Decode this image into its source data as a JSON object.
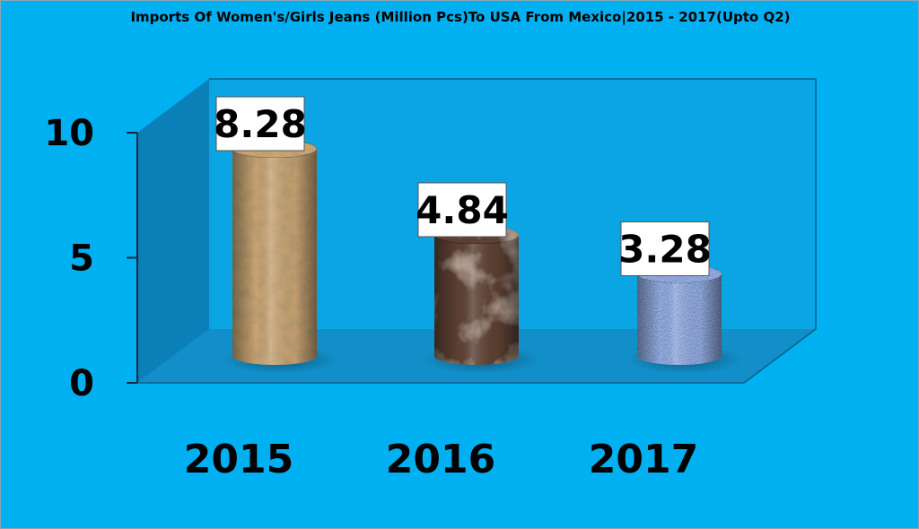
{
  "chart_data": {
    "type": "bar",
    "title": "Imports Of Women's/Girls Jeans (Million Pcs)To USA From Mexico|2015 - 2017(Upto Q2)",
    "categories": [
      "2015",
      "2016",
      "2017"
    ],
    "values": [
      8.28,
      4.84,
      3.28
    ],
    "data_labels": [
      "8.28",
      "4.84",
      "3.28"
    ],
    "y_ticks": [
      "0",
      "5",
      "10"
    ],
    "ylim": [
      0,
      10
    ],
    "style": "3d-cylinder",
    "legend": "none",
    "grid": false,
    "colors": {
      "background": "#00B0F0",
      "back_wall": "#0AA5E2",
      "side_wall": "#0B7FB8",
      "floor": "#128FC9",
      "bar_2015": "#C9A472",
      "bar_2016": "#5C4030",
      "bar_2017": "#6E8FD0",
      "label_box": "#FFFFFF"
    }
  }
}
